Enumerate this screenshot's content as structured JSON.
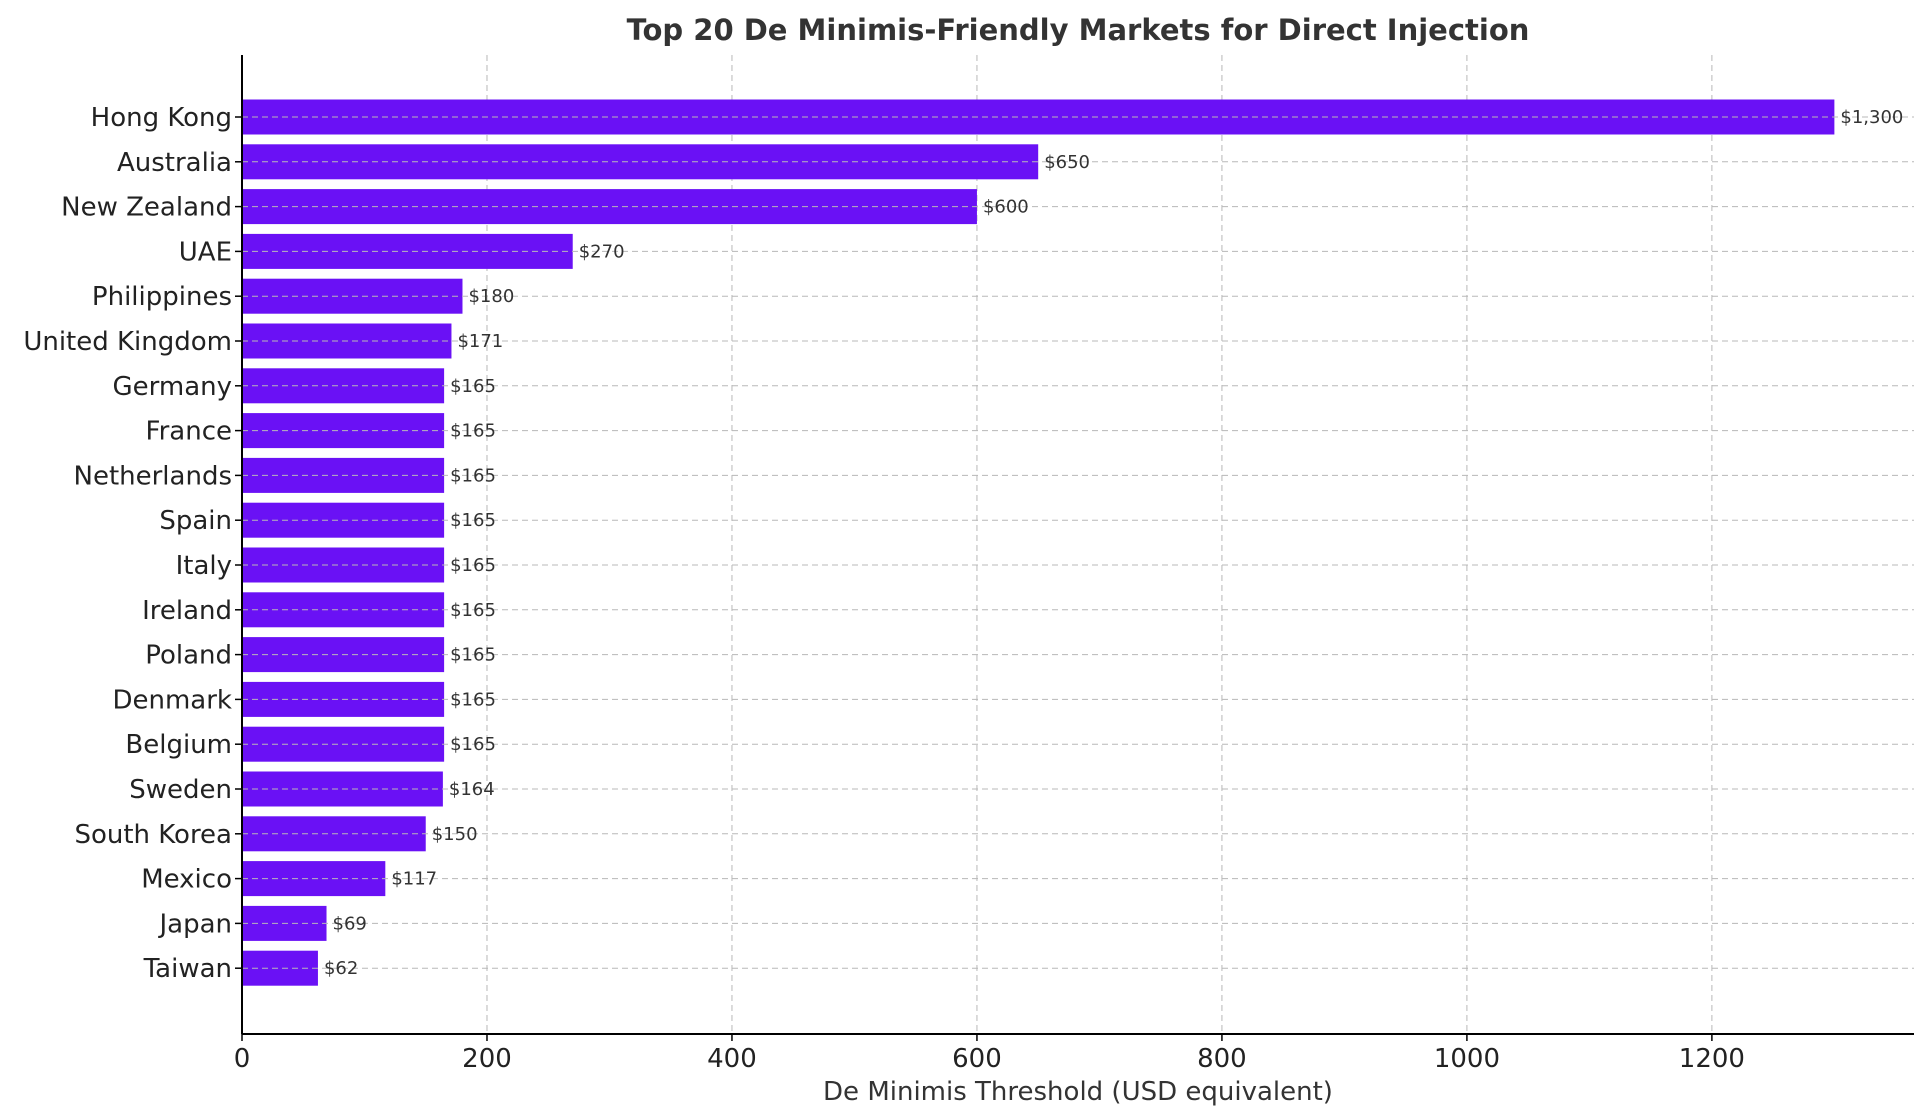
{
  "chart_data": {
    "type": "bar",
    "orientation": "horizontal",
    "title": "Top 20 De Minimis-Friendly Markets for Direct Injection",
    "xlabel": "De Minimis Threshold (USD equivalent)",
    "ylabel": "",
    "categories": [
      "Hong Kong",
      "Australia",
      "New Zealand",
      "UAE",
      "Philippines",
      "United Kingdom",
      "Germany",
      "France",
      "Netherlands",
      "Spain",
      "Italy",
      "Ireland",
      "Poland",
      "Denmark",
      "Belgium",
      "Sweden",
      "South Korea",
      "Mexico",
      "Japan",
      "Taiwan"
    ],
    "values": [
      1300,
      650,
      600,
      270,
      180,
      171,
      165,
      165,
      165,
      165,
      165,
      165,
      165,
      165,
      165,
      164,
      150,
      117,
      69,
      62
    ],
    "data_labels": [
      "$1,300",
      "$650",
      "$600",
      "$270",
      "$180",
      "$171",
      "$165",
      "$165",
      "$165",
      "$165",
      "$165",
      "$165",
      "$165",
      "$165",
      "$165",
      "$164",
      "$150",
      "$117",
      "$69",
      "$62"
    ],
    "xlim": [
      0,
      1365
    ],
    "xticks": [
      0,
      200,
      400,
      600,
      800,
      1000,
      1200
    ],
    "xtick_labels": [
      "0",
      "200",
      "400",
      "600",
      "800",
      "1000",
      "1200"
    ],
    "grid": true,
    "legend": "none",
    "bar_color": "#6a11f5"
  }
}
